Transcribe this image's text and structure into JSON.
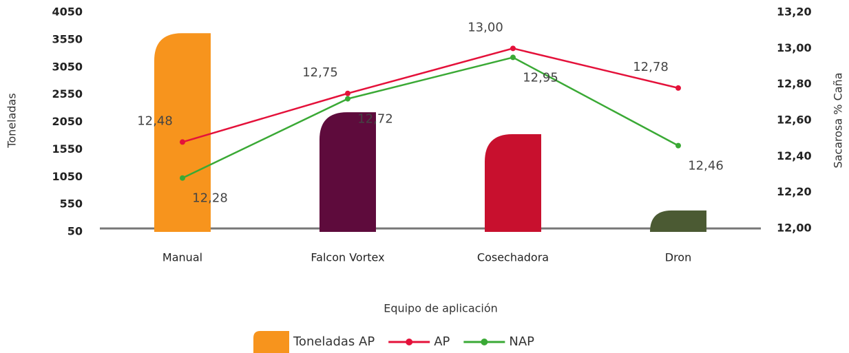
{
  "chart_data": {
    "type": "bar",
    "x_label": "Equipo de aplicación",
    "y_label": "Toneladas",
    "y2_label": "Sacarosa % Caña",
    "categories": [
      "Manual",
      "Falcon Vortex",
      "Cosechadora",
      "Dron"
    ],
    "series": [
      {
        "name": "Toneladas AP",
        "type": "bar",
        "colors": [
          "#f7941d",
          "#5e0b3c",
          "#c8102e",
          "#4b5a33"
        ],
        "values": [
          3670,
          2230,
          1830,
          440
        ]
      },
      {
        "name": "AP",
        "type": "line",
        "axis": "y2",
        "color": "#e4113a",
        "values": [
          12.48,
          12.75,
          13.0,
          12.78
        ],
        "value_labels": [
          "12,48",
          "12,75",
          "13,00",
          "12,78"
        ]
      },
      {
        "name": "NAP",
        "type": "line",
        "axis": "y2",
        "color": "#3aa935",
        "values": [
          12.28,
          12.72,
          12.95,
          12.46
        ],
        "value_labels": [
          "12,28",
          "12,72",
          "12,95",
          "12,46"
        ]
      }
    ],
    "ylim": [
      50,
      4050
    ],
    "yticks": [
      50,
      550,
      1050,
      1550,
      2050,
      2550,
      3050,
      3550,
      4050
    ],
    "y2lim": [
      12.0,
      13.2
    ],
    "y2ticks": [
      {
        "value": 12.0,
        "label": "12,00"
      },
      {
        "value": 12.2,
        "label": "12,20"
      },
      {
        "value": 12.4,
        "label": "12,40"
      },
      {
        "value": 12.6,
        "label": "12,60"
      },
      {
        "value": 12.8,
        "label": "12,80"
      },
      {
        "value": 13.0,
        "label": "13,00"
      },
      {
        "value": 13.2,
        "label": "13,20"
      }
    ],
    "legend": "bottom"
  }
}
